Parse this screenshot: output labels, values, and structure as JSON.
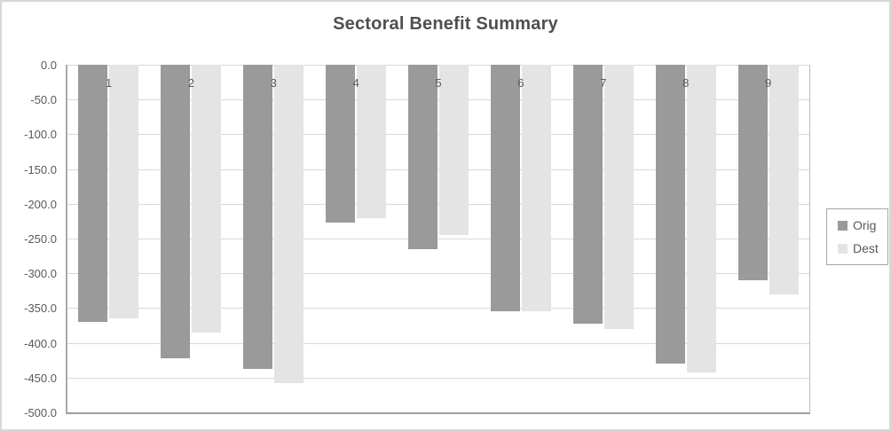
{
  "chart_data": {
    "type": "bar",
    "title": "Sectoral Benefit Summary",
    "categories": [
      "1",
      "2",
      "3",
      "4",
      "5",
      "6",
      "7",
      "8",
      "9"
    ],
    "series": [
      {
        "name": "Orig",
        "color": "#9a9a9a",
        "values": [
          -370,
          -422,
          -438,
          -227,
          -265,
          -355,
          -372,
          -430,
          -310
        ]
      },
      {
        "name": "Dest",
        "color": "#e4e4e4",
        "values": [
          -365,
          -385,
          -458,
          -220,
          -245,
          -354,
          -380,
          -443,
          -330
        ]
      }
    ],
    "xlabel": "",
    "ylabel": "",
    "ylim": [
      -500,
      0
    ],
    "ytick_step": 50,
    "ytick_labels": [
      "0.0",
      "-50.0",
      "-100.0",
      "-150.0",
      "-200.0",
      "-250.0",
      "-300.0",
      "-350.0",
      "-400.0",
      "-450.0",
      "-500.0"
    ],
    "grid": true,
    "legend_position": "right",
    "colors": {
      "title_text": "#4f4f4f",
      "axis_text": "#595959",
      "gridline": "#d9d9d9",
      "axis_line": "#a9a9a9",
      "outer_border": "#d7d7d7",
      "background": "#ffffff"
    }
  }
}
